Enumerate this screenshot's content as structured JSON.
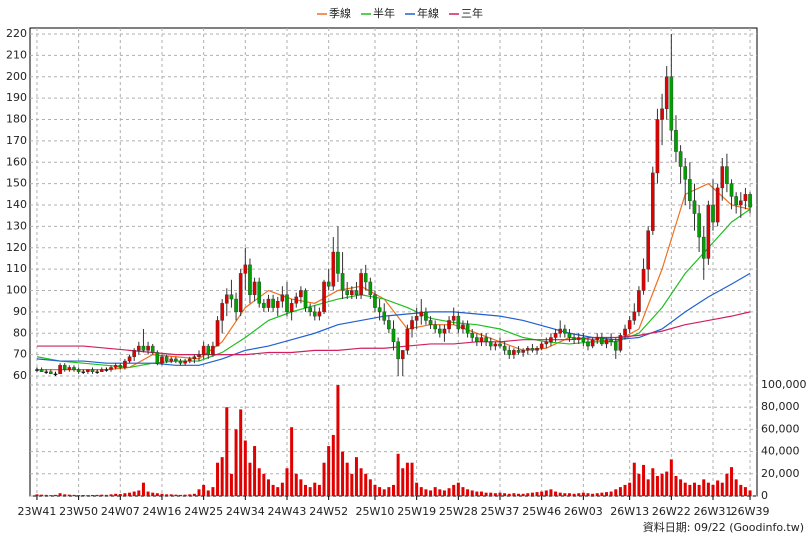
{
  "chart_data": {
    "type": "candlestick",
    "legend": [
      "季線",
      "半年",
      "年線",
      "三年"
    ],
    "footer": "資料日期: 09/22 (Goodinfo.tw)",
    "up_color": "#e00000",
    "down_color": "#00a000",
    "volume_color": "#e00000",
    "grid": true,
    "xlim": [
      -1.5,
      155.5
    ],
    "xticks": [
      {
        "value": 0,
        "label": "23W41"
      },
      {
        "value": 9,
        "label": "23W50"
      },
      {
        "value": 18,
        "label": "24W07"
      },
      {
        "value": 27,
        "label": "24W16"
      },
      {
        "value": 36,
        "label": "24W25"
      },
      {
        "value": 45,
        "label": "24W34"
      },
      {
        "value": 54,
        "label": "24W43"
      },
      {
        "value": 63,
        "label": "24W52"
      },
      {
        "value": 73,
        "label": "25W10"
      },
      {
        "value": 82,
        "label": "25W19"
      },
      {
        "value": 91,
        "label": "25W28"
      },
      {
        "value": 100,
        "label": "25W37"
      },
      {
        "value": 109,
        "label": "25W46"
      },
      {
        "value": 118,
        "label": "26W03"
      },
      {
        "value": 128,
        "label": "26W13"
      },
      {
        "value": 137,
        "label": "26W22"
      },
      {
        "value": 146,
        "label": "26W31"
      },
      {
        "value": 154,
        "label": "26W39"
      }
    ],
    "ylim": [
      60,
      220
    ],
    "yticks": [
      60,
      70,
      80,
      90,
      100,
      110,
      120,
      130,
      140,
      150,
      160,
      170,
      180,
      190,
      200,
      210,
      220
    ],
    "y2lim": [
      0,
      100000
    ],
    "y2ticks": [
      0,
      {
        "value": 20000,
        "label": "20,000"
      },
      {
        "value": 40000,
        "label": "40,000"
      },
      {
        "value": 60000,
        "label": "60,000"
      },
      {
        "value": 80000,
        "label": "80,000"
      },
      {
        "value": 100000,
        "label": "100,000"
      }
    ],
    "ohlc": [
      [
        63,
        64,
        62,
        63
      ],
      [
        63,
        64,
        62,
        62
      ],
      [
        62,
        63,
        61,
        62
      ],
      [
        62,
        63,
        61,
        61
      ],
      [
        61,
        62,
        60,
        61
      ],
      [
        61,
        66,
        61,
        65
      ],
      [
        65,
        66,
        62,
        63
      ],
      [
        63,
        65,
        62,
        64
      ],
      [
        64,
        65,
        62,
        63
      ],
      [
        63,
        64,
        61,
        62
      ],
      [
        62,
        63,
        61,
        62
      ],
      [
        62,
        63,
        61,
        63
      ],
      [
        63,
        64,
        61,
        62
      ],
      [
        62,
        63,
        61,
        62
      ],
      [
        62,
        64,
        62,
        63
      ],
      [
        63,
        64,
        62,
        63
      ],
      [
        63,
        65,
        62,
        64
      ],
      [
        64,
        66,
        63,
        65
      ],
      [
        65,
        66,
        63,
        64
      ],
      [
        64,
        68,
        63,
        67
      ],
      [
        67,
        70,
        66,
        69
      ],
      [
        69,
        73,
        67,
        72
      ],
      [
        72,
        76,
        70,
        74
      ],
      [
        74,
        82,
        71,
        72
      ],
      [
        72,
        76,
        70,
        74
      ],
      [
        74,
        75,
        70,
        71
      ],
      [
        71,
        72,
        65,
        66
      ],
      [
        66,
        70,
        65,
        69
      ],
      [
        69,
        70,
        66,
        67
      ],
      [
        67,
        69,
        66,
        68
      ],
      [
        68,
        69,
        66,
        67
      ],
      [
        67,
        68,
        65,
        66
      ],
      [
        66,
        68,
        65,
        67
      ],
      [
        67,
        69,
        66,
        68
      ],
      [
        68,
        70,
        66,
        69
      ],
      [
        69,
        72,
        67,
        70
      ],
      [
        70,
        76,
        68,
        74
      ],
      [
        74,
        75,
        68,
        70
      ],
      [
        70,
        76,
        69,
        74
      ],
      [
        74,
        88,
        74,
        86
      ],
      [
        86,
        96,
        80,
        94
      ],
      [
        94,
        101,
        88,
        98
      ],
      [
        98,
        105,
        92,
        96
      ],
      [
        96,
        99,
        86,
        90
      ],
      [
        90,
        110,
        88,
        108
      ],
      [
        108,
        120,
        100,
        112
      ],
      [
        112,
        115,
        94,
        98
      ],
      [
        98,
        106,
        95,
        104
      ],
      [
        104,
        106,
        92,
        94
      ],
      [
        94,
        96,
        90,
        92
      ],
      [
        92,
        98,
        90,
        96
      ],
      [
        96,
        98,
        90,
        92
      ],
      [
        92,
        97,
        88,
        95
      ],
      [
        95,
        102,
        92,
        98
      ],
      [
        98,
        104,
        88,
        90
      ],
      [
        90,
        96,
        86,
        94
      ],
      [
        94,
        99,
        92,
        97
      ],
      [
        97,
        102,
        94,
        100
      ],
      [
        100,
        101,
        90,
        92
      ],
      [
        92,
        94,
        88,
        90
      ],
      [
        90,
        93,
        86,
        88
      ],
      [
        88,
        92,
        86,
        90
      ],
      [
        90,
        105,
        89,
        104
      ],
      [
        104,
        110,
        100,
        102
      ],
      [
        102,
        125,
        100,
        118
      ],
      [
        118,
        130,
        104,
        108
      ],
      [
        108,
        118,
        96,
        100
      ],
      [
        100,
        104,
        96,
        98
      ],
      [
        98,
        102,
        96,
        100
      ],
      [
        100,
        104,
        96,
        98
      ],
      [
        98,
        110,
        96,
        108
      ],
      [
        108,
        112,
        100,
        104
      ],
      [
        104,
        106,
        96,
        98
      ],
      [
        98,
        100,
        90,
        92
      ],
      [
        92,
        96,
        86,
        90
      ],
      [
        90,
        94,
        84,
        86
      ],
      [
        86,
        88,
        80,
        82
      ],
      [
        82,
        86,
        72,
        76
      ],
      [
        76,
        78,
        60,
        68
      ],
      [
        68,
        72,
        60,
        72
      ],
      [
        72,
        84,
        70,
        82
      ],
      [
        82,
        88,
        78,
        86
      ],
      [
        86,
        92,
        82,
        88
      ],
      [
        88,
        96,
        84,
        90
      ],
      [
        90,
        92,
        84,
        86
      ],
      [
        86,
        88,
        82,
        84
      ],
      [
        84,
        86,
        80,
        82
      ],
      [
        82,
        84,
        78,
        80
      ],
      [
        80,
        84,
        76,
        82
      ],
      [
        82,
        88,
        80,
        86
      ],
      [
        86,
        92,
        84,
        88
      ],
      [
        88,
        90,
        80,
        82
      ],
      [
        82,
        86,
        80,
        84
      ],
      [
        84,
        86,
        78,
        80
      ],
      [
        80,
        82,
        76,
        78
      ],
      [
        78,
        80,
        74,
        76
      ],
      [
        76,
        80,
        74,
        78
      ],
      [
        78,
        80,
        74,
        76
      ],
      [
        76,
        78,
        72,
        74
      ],
      [
        74,
        76,
        72,
        75
      ],
      [
        75,
        78,
        73,
        74
      ],
      [
        74,
        76,
        70,
        72
      ],
      [
        72,
        74,
        68,
        70
      ],
      [
        70,
        73,
        68,
        72
      ],
      [
        72,
        74,
        70,
        71
      ],
      [
        71,
        73,
        69,
        72
      ],
      [
        72,
        74,
        70,
        73
      ],
      [
        73,
        75,
        71,
        72
      ],
      [
        72,
        74,
        70,
        73
      ],
      [
        73,
        76,
        72,
        75
      ],
      [
        75,
        78,
        73,
        76
      ],
      [
        76,
        80,
        74,
        78
      ],
      [
        78,
        82,
        76,
        80
      ],
      [
        80,
        86,
        78,
        82
      ],
      [
        82,
        84,
        78,
        80
      ],
      [
        80,
        82,
        76,
        78
      ],
      [
        78,
        80,
        75,
        77
      ],
      [
        77,
        80,
        75,
        78
      ],
      [
        78,
        80,
        74,
        76
      ],
      [
        76,
        78,
        72,
        74
      ],
      [
        74,
        78,
        73,
        77
      ],
      [
        77,
        80,
        75,
        78
      ],
      [
        78,
        80,
        74,
        75
      ],
      [
        75,
        78,
        73,
        77
      ],
      [
        77,
        80,
        74,
        76
      ],
      [
        76,
        78,
        68,
        72
      ],
      [
        72,
        80,
        71,
        79
      ],
      [
        79,
        84,
        77,
        82
      ],
      [
        82,
        88,
        80,
        86
      ],
      [
        86,
        94,
        84,
        90
      ],
      [
        90,
        102,
        88,
        100
      ],
      [
        100,
        115,
        98,
        110
      ],
      [
        110,
        130,
        104,
        128
      ],
      [
        128,
        158,
        126,
        155
      ],
      [
        155,
        185,
        150,
        180
      ],
      [
        180,
        192,
        168,
        185
      ],
      [
        185,
        205,
        180,
        200
      ],
      [
        200,
        220,
        170,
        175
      ],
      [
        175,
        182,
        160,
        165
      ],
      [
        165,
        168,
        150,
        158
      ],
      [
        158,
        162,
        140,
        152
      ],
      [
        152,
        160,
        138,
        142
      ],
      [
        142,
        150,
        128,
        136
      ],
      [
        136,
        140,
        118,
        125
      ],
      [
        125,
        130,
        105,
        115
      ],
      [
        115,
        142,
        112,
        140
      ],
      [
        140,
        152,
        128,
        132
      ],
      [
        132,
        150,
        130,
        148
      ],
      [
        148,
        162,
        142,
        158
      ],
      [
        158,
        164,
        146,
        150
      ],
      [
        150,
        152,
        138,
        144
      ],
      [
        144,
        146,
        136,
        140
      ],
      [
        140,
        146,
        134,
        142
      ],
      [
        142,
        148,
        138,
        145
      ],
      [
        145,
        146,
        136,
        139
      ]
    ],
    "volume": [
      1500,
      1200,
      1000,
      800,
      1000,
      2500,
      1500,
      1200,
      1000,
      800,
      900,
      800,
      900,
      1000,
      1200,
      1000,
      1500,
      2000,
      1800,
      2500,
      3000,
      4000,
      5000,
      12000,
      4000,
      3000,
      2500,
      2000,
      1500,
      1500,
      1200,
      1000,
      1200,
      1500,
      2000,
      6000,
      10000,
      5000,
      8000,
      30000,
      35000,
      80000,
      20000,
      60000,
      78000,
      50000,
      30000,
      45000,
      25000,
      20000,
      15000,
      10000,
      8000,
      12000,
      25000,
      62000,
      20000,
      15000,
      10000,
      8000,
      12000,
      10000,
      30000,
      45000,
      55000,
      100000,
      40000,
      30000,
      20000,
      35000,
      25000,
      20000,
      15000,
      10000,
      8000,
      6000,
      8000,
      10000,
      38000,
      25000,
      30000,
      30000,
      12000,
      8000,
      6000,
      5000,
      8000,
      6000,
      5000,
      7000,
      10000,
      12000,
      8000,
      6000,
      5000,
      4000,
      4000,
      3000,
      3000,
      2500,
      3000,
      2500,
      2000,
      2500,
      2000,
      2000,
      2500,
      3000,
      3500,
      4000,
      5000,
      6000,
      4000,
      3000,
      2500,
      2500,
      2000,
      2500,
      3000,
      2500,
      2000,
      2500,
      3000,
      3500,
      4000,
      6000,
      8000,
      10000,
      12000,
      30000,
      20000,
      28000,
      15000,
      25000,
      18000,
      20000,
      22000,
      33000,
      18000,
      15000,
      12000,
      10000,
      12000,
      10000,
      15000,
      12000,
      10000,
      14000,
      12000,
      20000,
      26000,
      15000,
      10000,
      8000,
      5000
    ],
    "ma_x": [
      0,
      5,
      10,
      15,
      20,
      25,
      30,
      35,
      40,
      45,
      50,
      55,
      60,
      65,
      70,
      75,
      80,
      85,
      90,
      95,
      100,
      105,
      110,
      115,
      120,
      125,
      130,
      135,
      140,
      145,
      150,
      154
    ],
    "series": [
      {
        "name": "季線",
        "color": "#f07020",
        "values": [
          63,
          63,
          63,
          63,
          64,
          70,
          69,
          68,
          76,
          92,
          100,
          96,
          94,
          100,
          102,
          96,
          82,
          84,
          84,
          80,
          76,
          72,
          73,
          78,
          77,
          76,
          82,
          110,
          145,
          150,
          140,
          138
        ]
      },
      {
        "name": "半年",
        "color": "#20c020",
        "values": [
          69,
          67,
          66,
          65,
          64,
          66,
          67,
          67,
          71,
          78,
          86,
          90,
          93,
          96,
          98,
          96,
          92,
          87,
          85,
          84,
          82,
          78,
          76,
          75,
          76,
          76,
          80,
          92,
          108,
          120,
          132,
          138
        ]
      },
      {
        "name": "年線",
        "color": "#2060d0",
        "values": [
          68,
          67,
          67,
          66,
          66,
          66,
          65,
          65,
          68,
          72,
          74,
          77,
          80,
          84,
          86,
          88,
          89,
          90,
          90,
          89,
          88,
          86,
          83,
          80,
          78,
          77,
          78,
          82,
          90,
          97,
          103,
          108
        ]
      },
      {
        "name": "三年",
        "color": "#d02060",
        "values": [
          74,
          74,
          74,
          73,
          72,
          71,
          70,
          70,
          70,
          70,
          71,
          71,
          72,
          72,
          73,
          73,
          74,
          75,
          75,
          76,
          76,
          77,
          77,
          77,
          78,
          78,
          79,
          81,
          84,
          86,
          88,
          90
        ]
      }
    ]
  }
}
